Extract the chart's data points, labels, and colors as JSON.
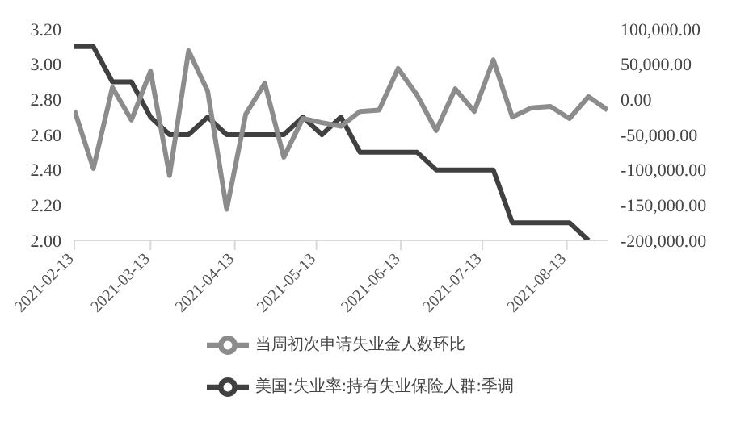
{
  "chart_data": {
    "type": "line",
    "x": [
      "2021-02-13",
      "2021-02-20",
      "2021-02-27",
      "2021-03-06",
      "2021-03-13",
      "2021-03-20",
      "2021-03-27",
      "2021-04-03",
      "2021-04-10",
      "2021-04-17",
      "2021-04-24",
      "2021-05-01",
      "2021-05-08",
      "2021-05-15",
      "2021-05-22",
      "2021-05-29",
      "2021-06-05",
      "2021-06-12",
      "2021-06-19",
      "2021-06-26",
      "2021-07-03",
      "2021-07-10",
      "2021-07-17",
      "2021-07-24",
      "2021-07-31",
      "2021-08-07",
      "2021-08-14",
      "2021-08-21",
      "2021-08-28"
    ],
    "series": [
      {
        "name": "美国:失业率:持有失业保险人群:季调",
        "color": "#404040",
        "values": [
          3.1,
          3.1,
          2.9,
          2.9,
          2.7,
          2.6,
          2.6,
          2.7,
          2.6,
          2.6,
          2.6,
          2.6,
          2.7,
          2.6,
          2.7,
          2.5,
          2.5,
          2.5,
          2.5,
          2.4,
          2.4,
          2.4,
          2.4,
          2.1,
          2.1,
          2.1,
          2.1,
          2.0,
          null
        ]
      },
      {
        "name": "当周初次申请失业金人数环比",
        "color": "#8c8c8c",
        "axis": "y2",
        "values": [
          -15000,
          -98000,
          17000,
          -29000,
          40000,
          -108000,
          69000,
          12000,
          -156000,
          -21000,
          23000,
          -82000,
          -27000,
          -33000,
          -38000,
          -17000,
          -15000,
          44000,
          6000,
          -44000,
          15000,
          -17000,
          56000,
          -25000,
          -12000,
          -10000,
          -27000,
          4000,
          -15000
        ]
      }
    ],
    "xlim": [
      "2021-02-13",
      "2021-08-28"
    ],
    "xticks": [
      "2021-02-13",
      "2021-03-13",
      "2021-04-13",
      "2021-05-13",
      "2021-06-13",
      "2021-07-13",
      "2021-08-13"
    ],
    "ylim": [
      2.0,
      3.2
    ],
    "yticks": [
      {
        "value": 2.0,
        "label": "2.00"
      },
      {
        "value": 2.2,
        "label": "2.20"
      },
      {
        "value": 2.4,
        "label": "2.40"
      },
      {
        "value": 2.6,
        "label": "2.60"
      },
      {
        "value": 2.8,
        "label": "2.80"
      },
      {
        "value": 3.0,
        "label": "3.00"
      },
      {
        "value": 3.2,
        "label": "3.20"
      }
    ],
    "y2lim": [
      -200000,
      100000
    ],
    "y2ticks": [
      {
        "value": -200000,
        "label": "-200,000.00"
      },
      {
        "value": -150000,
        "label": "-150,000.00"
      },
      {
        "value": -100000,
        "label": "-100,000.00"
      },
      {
        "value": -50000,
        "label": "-50,000.00"
      },
      {
        "value": 0,
        "label": "0.00"
      },
      {
        "value": 50000,
        "label": "50,000.00"
      },
      {
        "value": 100000,
        "label": "100,000.00"
      }
    ],
    "grid": false,
    "legend": "bottom",
    "marker": "none",
    "line_style": "solid"
  }
}
